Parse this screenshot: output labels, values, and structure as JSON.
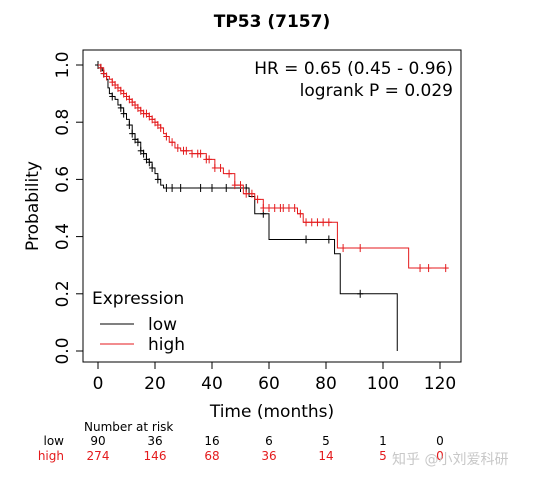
{
  "chart_data": {
    "type": "line",
    "subtype": "kaplan-meier",
    "title": "TP53 (7157)",
    "xlabel": "Time (months)",
    "ylabel": "Probability",
    "xlim": [
      0,
      125
    ],
    "ylim": [
      0,
      1.0
    ],
    "xticks": [
      "0",
      "20",
      "40",
      "60",
      "80",
      "100",
      "120"
    ],
    "yticks": [
      "0.0",
      "0.2",
      "0.4",
      "0.6",
      "0.8",
      "1.0"
    ],
    "grid": false,
    "annotations": [
      "HR = 0.65 (0.45 - 0.96)",
      "logrank P = 0.029"
    ],
    "legend": {
      "title": "Expression",
      "position": "bottom-left"
    },
    "series": [
      {
        "name": "low",
        "color": "#000000",
        "steps": [
          [
            0,
            1.0
          ],
          [
            1,
            0.99
          ],
          [
            1.5,
            0.98
          ],
          [
            2,
            0.97
          ],
          [
            3,
            0.95
          ],
          [
            3.5,
            0.92
          ],
          [
            4,
            0.9
          ],
          [
            5,
            0.89
          ],
          [
            6,
            0.88
          ],
          [
            7,
            0.86
          ],
          [
            8,
            0.85
          ],
          [
            9,
            0.83
          ],
          [
            10,
            0.81
          ],
          [
            11,
            0.79
          ],
          [
            12,
            0.76
          ],
          [
            13,
            0.74
          ],
          [
            14,
            0.73
          ],
          [
            15,
            0.7
          ],
          [
            16,
            0.69
          ],
          [
            17,
            0.67
          ],
          [
            18,
            0.66
          ],
          [
            19,
            0.64
          ],
          [
            20,
            0.62
          ],
          [
            21,
            0.6
          ],
          [
            22,
            0.58
          ],
          [
            23,
            0.57
          ],
          [
            53,
            0.54
          ],
          [
            55,
            0.48
          ],
          [
            60,
            0.39
          ],
          [
            83,
            0.34
          ],
          [
            85,
            0.2
          ],
          [
            105,
            0.0
          ]
        ],
        "end": 105,
        "censor_x": [
          0,
          1,
          2,
          5,
          8,
          9,
          11,
          12,
          13,
          14,
          15,
          16,
          17,
          18,
          19,
          21,
          24,
          26,
          29,
          36,
          40,
          45,
          50,
          52,
          58,
          73,
          81,
          92
        ]
      },
      {
        "name": "high",
        "color": "#e41a1c",
        "steps": [
          [
            0,
            1.0
          ],
          [
            1,
            0.99
          ],
          [
            2,
            0.97
          ],
          [
            3,
            0.96
          ],
          [
            4,
            0.95
          ],
          [
            5,
            0.94
          ],
          [
            6,
            0.93
          ],
          [
            7,
            0.92
          ],
          [
            8,
            0.91
          ],
          [
            9,
            0.9
          ],
          [
            10,
            0.89
          ],
          [
            11,
            0.88
          ],
          [
            12,
            0.87
          ],
          [
            13,
            0.86
          ],
          [
            14,
            0.85
          ],
          [
            15,
            0.84
          ],
          [
            16,
            0.83
          ],
          [
            18,
            0.82
          ],
          [
            19,
            0.81
          ],
          [
            20,
            0.8
          ],
          [
            21,
            0.79
          ],
          [
            22,
            0.78
          ],
          [
            23,
            0.76
          ],
          [
            24,
            0.75
          ],
          [
            25,
            0.73
          ],
          [
            27,
            0.71
          ],
          [
            29,
            0.7
          ],
          [
            33,
            0.69
          ],
          [
            38,
            0.67
          ],
          [
            41,
            0.64
          ],
          [
            44,
            0.62
          ],
          [
            48,
            0.58
          ],
          [
            51,
            0.55
          ],
          [
            55,
            0.53
          ],
          [
            58,
            0.5
          ],
          [
            70,
            0.48
          ],
          [
            72,
            0.45
          ],
          [
            84,
            0.36
          ],
          [
            109,
            0.29
          ]
        ],
        "end": 123,
        "censor_x": [
          1,
          2,
          3,
          5,
          6,
          7,
          8,
          9,
          10,
          11,
          12,
          13,
          14,
          15,
          16,
          17,
          18,
          19,
          20,
          21,
          22,
          24,
          26,
          28,
          30,
          31,
          33,
          35,
          36,
          38,
          39,
          41,
          43,
          46,
          48,
          50,
          52,
          54,
          56,
          58,
          60,
          62,
          64,
          65,
          67,
          69,
          71,
          73,
          75,
          77,
          79,
          81,
          86,
          92,
          113,
          116,
          122
        ]
      }
    ],
    "risk_table": {
      "header": "Number at risk",
      "rows": [
        {
          "label": "low",
          "color": "#000000",
          "values": [
            "90",
            "36",
            "16",
            "6",
            "5",
            "1",
            "0"
          ]
        },
        {
          "label": "high",
          "color": "#e41a1c",
          "values": [
            "274",
            "146",
            "68",
            "36",
            "14",
            "5",
            "0"
          ]
        }
      ]
    }
  },
  "watermark": "知乎 @小刘爱科研"
}
